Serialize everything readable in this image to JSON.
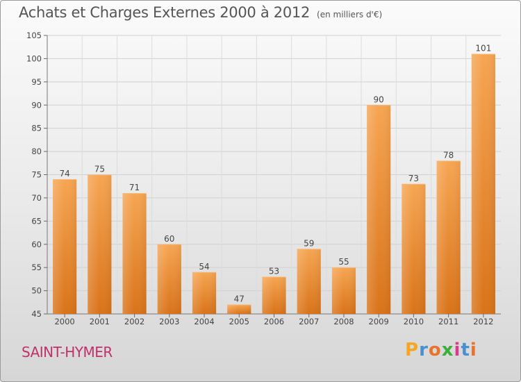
{
  "header": {
    "title": "Achats et Charges Externes 2000 à 2012",
    "unit": "(en milliers d'€)"
  },
  "footer": {
    "commune": "SAINT-HYMER",
    "brand": [
      "P",
      "r",
      "o",
      "x",
      "i",
      "t",
      "i"
    ],
    "brand_colors": [
      "#f5a623",
      "#4a8fd0",
      "#e8732a",
      "#3cae3c",
      "#d93a8c",
      "#4a8fd0",
      "#e8732a"
    ]
  },
  "chart_data": {
    "type": "bar",
    "title": "Achats et Charges Externes 2000 à 2012",
    "subtitle": "(en milliers d'€)",
    "categories": [
      "2000",
      "2001",
      "2002",
      "2003",
      "2004",
      "2005",
      "2006",
      "2007",
      "2008",
      "2009",
      "2010",
      "2011",
      "2012"
    ],
    "values": [
      74,
      75,
      71,
      60,
      54,
      47,
      53,
      59,
      55,
      90,
      73,
      78,
      101
    ],
    "ylim": [
      45,
      105
    ],
    "yticks": [
      45,
      50,
      55,
      60,
      65,
      70,
      75,
      80,
      85,
      90,
      95,
      100,
      105
    ],
    "grid": true,
    "bar_color": "#f0922e"
  }
}
